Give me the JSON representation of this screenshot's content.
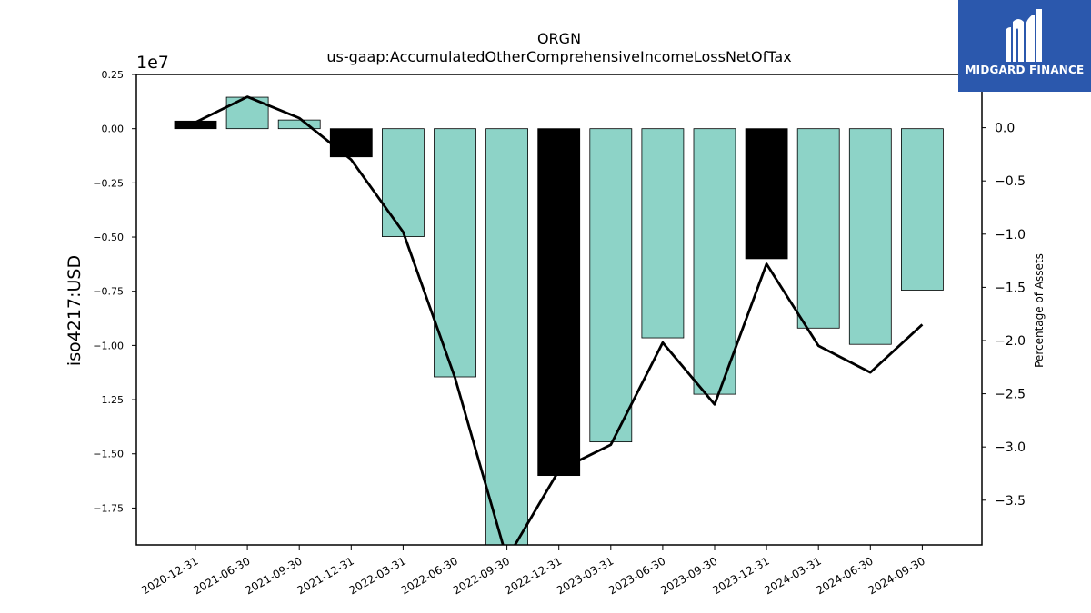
{
  "chart_data": {
    "type": "bar",
    "title": "ORGN",
    "subtitle": "us-gaap:AccumulatedOtherComprehensiveIncomeLossNetOfTax",
    "ylabel": "iso4217:USD",
    "y_offset_label": "1e7",
    "y2label": "Percentage of Assets",
    "categories": [
      "2020-12-31",
      "2021-06-30",
      "2021-09-30",
      "2021-12-31",
      "2022-03-31",
      "2022-06-30",
      "2022-09-30",
      "2022-12-31",
      "2023-03-31",
      "2023-06-30",
      "2023-09-30",
      "2023-12-31",
      "2024-03-31",
      "2024-06-30",
      "2024-09-30"
    ],
    "series": [
      {
        "type": "bar",
        "values": [
          350000,
          1450000,
          400000,
          -1300000,
          -4980000,
          -11450000,
          -19300000,
          -16000000,
          -14450000,
          -9650000,
          -12250000,
          -6000000,
          -9200000,
          -9950000,
          -7450000
        ],
        "colors": [
          "#000000",
          "#8dd3c7",
          "#8dd3c7",
          "#000000",
          "#8dd3c7",
          "#8dd3c7",
          "#8dd3c7",
          "#000000",
          "#8dd3c7",
          "#8dd3c7",
          "#8dd3c7",
          "#000000",
          "#8dd3c7",
          "#8dd3c7",
          "#8dd3c7"
        ]
      },
      {
        "type": "line",
        "axis": "right",
        "values": [
          0.05,
          0.29,
          0.09,
          -0.3,
          -0.98,
          -2.35,
          -4.05,
          -3.22,
          -2.98,
          -2.02,
          -2.6,
          -1.28,
          -2.05,
          -2.3,
          -1.85
        ],
        "color": "#000000"
      }
    ],
    "ylim": [
      -1.92,
      0.25
    ],
    "yticks": [
      "0.25",
      "0.00",
      "−0.25",
      "−0.50",
      "−0.75",
      "−1.00",
      "−1.25",
      "−1.50",
      "−1.75"
    ],
    "y2lim": [
      -3.92,
      0.5
    ],
    "y2ticks": [
      "0.0",
      "−0.5",
      "−1.0",
      "−1.5",
      "−2.0",
      "−2.5",
      "−3.0",
      "−3.5"
    ],
    "grid": false
  },
  "logo": {
    "text": "MIDGARD FINANCE",
    "color": "#2b58ad"
  }
}
